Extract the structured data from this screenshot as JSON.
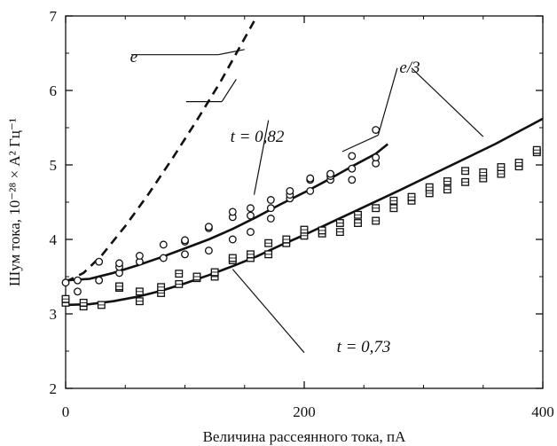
{
  "chart_data": {
    "type": "scatter",
    "xlabel": "Величина рассеянного тока, пА",
    "ylabel": "Шум тока, 10⁻²⁸ × А² Гц⁻¹",
    "xlim": [
      0,
      400
    ],
    "ylim": [
      2,
      7
    ],
    "x_ticks": [
      "0",
      "200",
      "400"
    ],
    "y_ticks": [
      "2",
      "3",
      "4",
      "5",
      "6",
      "7"
    ],
    "grid": false,
    "annotations": {
      "e": "e",
      "e_third": "e/3",
      "t_upper": "t = 0,82",
      "t_lower": "t = 0,73"
    },
    "series": [
      {
        "marker": "circle",
        "points": [
          [
            0,
            3.42
          ],
          [
            10,
            3.3
          ],
          [
            10,
            3.45
          ],
          [
            28,
            3.45
          ],
          [
            28,
            3.7
          ],
          [
            45,
            3.55
          ],
          [
            45,
            3.63
          ],
          [
            45,
            3.68
          ],
          [
            62,
            3.7
          ],
          [
            62,
            3.78
          ],
          [
            82,
            3.75
          ],
          [
            82,
            3.93
          ],
          [
            100,
            3.8
          ],
          [
            100,
            3.97
          ],
          [
            100,
            3.99
          ],
          [
            120,
            3.85
          ],
          [
            120,
            4.15
          ],
          [
            120,
            4.17
          ],
          [
            140,
            4.0
          ],
          [
            140,
            4.3
          ],
          [
            140,
            4.37
          ],
          [
            155,
            4.1
          ],
          [
            155,
            4.32
          ],
          [
            155,
            4.42
          ],
          [
            172,
            4.28
          ],
          [
            172,
            4.42
          ],
          [
            172,
            4.53
          ],
          [
            188,
            4.55
          ],
          [
            188,
            4.6
          ],
          [
            188,
            4.65
          ],
          [
            205,
            4.65
          ],
          [
            205,
            4.8
          ],
          [
            205,
            4.82
          ],
          [
            222,
            4.8
          ],
          [
            222,
            4.85
          ],
          [
            222,
            4.88
          ],
          [
            240,
            4.8
          ],
          [
            240,
            4.95
          ],
          [
            240,
            5.12
          ],
          [
            260,
            5.02
          ],
          [
            260,
            5.1
          ],
          [
            260,
            5.47
          ]
        ]
      },
      {
        "marker": "square",
        "points": [
          [
            0,
            3.15
          ],
          [
            0,
            3.2
          ],
          [
            15,
            3.1
          ],
          [
            15,
            3.15
          ],
          [
            30,
            3.12
          ],
          [
            45,
            3.35
          ],
          [
            45,
            3.37
          ],
          [
            62,
            3.17
          ],
          [
            62,
            3.3
          ],
          [
            80,
            3.28
          ],
          [
            80,
            3.36
          ],
          [
            95,
            3.4
          ],
          [
            95,
            3.54
          ],
          [
            110,
            3.48
          ],
          [
            110,
            3.5
          ],
          [
            125,
            3.5
          ],
          [
            125,
            3.56
          ],
          [
            140,
            3.72
          ],
          [
            140,
            3.75
          ],
          [
            155,
            3.75
          ],
          [
            155,
            3.8
          ],
          [
            170,
            3.8
          ],
          [
            170,
            3.95
          ],
          [
            185,
            3.95
          ],
          [
            185,
            4.0
          ],
          [
            200,
            4.05
          ],
          [
            200,
            4.13
          ],
          [
            215,
            4.08
          ],
          [
            215,
            4.12
          ],
          [
            230,
            4.1
          ],
          [
            230,
            4.22
          ],
          [
            245,
            4.22
          ],
          [
            245,
            4.33
          ],
          [
            260,
            4.25
          ],
          [
            260,
            4.42
          ],
          [
            275,
            4.42
          ],
          [
            275,
            4.52
          ],
          [
            290,
            4.52
          ],
          [
            290,
            4.57
          ],
          [
            305,
            4.62
          ],
          [
            305,
            4.7
          ],
          [
            320,
            4.67
          ],
          [
            320,
            4.78
          ],
          [
            335,
            4.77
          ],
          [
            335,
            4.92
          ],
          [
            350,
            4.82
          ],
          [
            350,
            4.9
          ],
          [
            365,
            4.88
          ],
          [
            365,
            4.97
          ],
          [
            380,
            4.98
          ],
          [
            380,
            5.03
          ],
          [
            395,
            5.17
          ],
          [
            395,
            5.2
          ]
        ]
      }
    ],
    "lines": [
      {
        "style": "dashed",
        "points": [
          [
            0,
            3.43
          ],
          [
            15,
            3.55
          ],
          [
            30,
            3.78
          ],
          [
            50,
            4.18
          ],
          [
            70,
            4.62
          ],
          [
            90,
            5.1
          ],
          [
            110,
            5.6
          ],
          [
            130,
            6.12
          ],
          [
            150,
            6.7
          ],
          [
            158,
            6.93
          ]
        ]
      },
      {
        "style": "solid",
        "points": [
          [
            0,
            3.45
          ],
          [
            20,
            3.47
          ],
          [
            40,
            3.55
          ],
          [
            60,
            3.65
          ],
          [
            80,
            3.76
          ],
          [
            100,
            3.88
          ],
          [
            120,
            4.0
          ],
          [
            140,
            4.14
          ],
          [
            160,
            4.3
          ],
          [
            180,
            4.47
          ],
          [
            200,
            4.63
          ],
          [
            220,
            4.8
          ],
          [
            240,
            4.98
          ],
          [
            260,
            5.15
          ],
          [
            270,
            5.28
          ]
        ]
      },
      {
        "style": "solid",
        "points": [
          [
            0,
            3.12
          ],
          [
            20,
            3.13
          ],
          [
            40,
            3.17
          ],
          [
            60,
            3.23
          ],
          [
            80,
            3.31
          ],
          [
            100,
            3.41
          ],
          [
            120,
            3.52
          ],
          [
            140,
            3.64
          ],
          [
            160,
            3.77
          ],
          [
            180,
            3.92
          ],
          [
            200,
            4.06
          ],
          [
            240,
            4.36
          ],
          [
            280,
            4.66
          ],
          [
            320,
            4.97
          ],
          [
            360,
            5.28
          ],
          [
            400,
            5.62
          ]
        ]
      }
    ],
    "pointers": [
      {
        "from": [
          55,
          6.48
        ],
        "to": [
          128,
          6.48
        ]
      },
      {
        "from": [
          128,
          6.48
        ],
        "to": [
          150,
          6.55
        ]
      },
      {
        "from": [
          101,
          5.85
        ],
        "to": [
          131,
          5.85
        ]
      },
      {
        "from": [
          131,
          5.85
        ],
        "to": [
          143,
          6.15
        ]
      },
      {
        "from": [
          158,
          4.6
        ],
        "to": [
          170,
          5.6
        ]
      },
      {
        "from": [
          232,
          5.18
        ],
        "to": [
          262,
          5.4
        ]
      },
      {
        "from": [
          262,
          5.4
        ],
        "to": [
          278,
          6.3
        ]
      },
      {
        "from": [
          290,
          6.3
        ],
        "to": [
          350,
          5.38
        ]
      },
      {
        "from": [
          200,
          2.48
        ],
        "to": [
          140,
          3.6
        ]
      }
    ]
  }
}
